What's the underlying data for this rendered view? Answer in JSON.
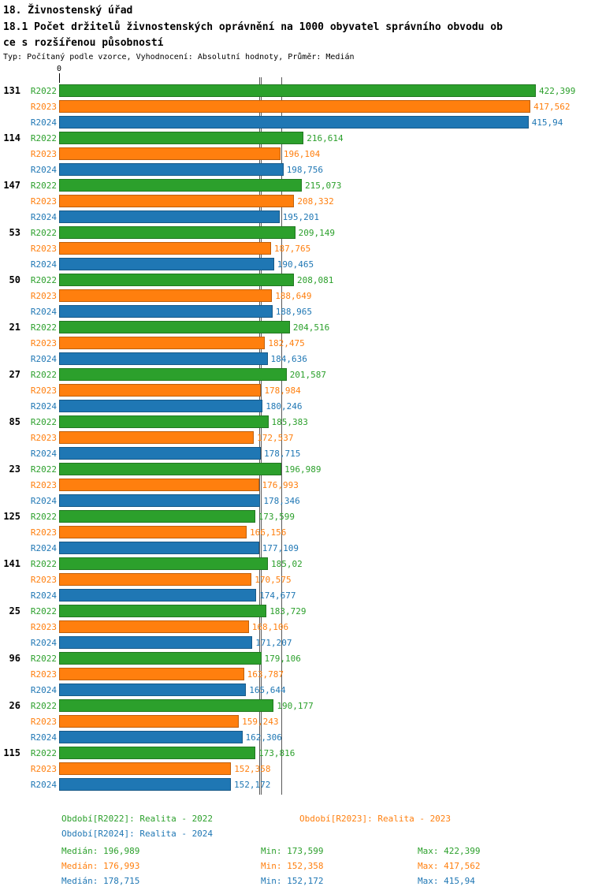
{
  "header": {
    "title": "18. Živnostenský úřad",
    "subtitle_line1": "18.1 Počet držitelů živnostenských oprávnění na 1000 obyvatel správního obvodu ob",
    "subtitle_line2": "ce s rozšířenou působností",
    "type_line": "Typ: Počítaný podle vzorce, Vyhodnocení: Absolutní hodnoty, Průměr: Medián"
  },
  "colors": {
    "series": [
      "#2ca02c",
      "#ff7f0e",
      "#1f77b4"
    ]
  },
  "axis": {
    "zero_label": "0"
  },
  "chart_data": {
    "type": "bar",
    "orientation": "horizontal",
    "title": "18.1 Počet držitelů živnostenských oprávnění na 1000 obyvatel správního obvodu obce s rozšířenou působností",
    "series_names": [
      "R2022",
      "R2023",
      "R2024"
    ],
    "x_scale_max": 422.399,
    "xlim": [
      0,
      422.399
    ],
    "median_values": [
      196.989,
      176.993,
      178.715
    ],
    "groups": [
      {
        "label": "131",
        "values": [
          422.399,
          417.562,
          415.94
        ],
        "value_labels": [
          "422,399",
          "417,562",
          "415,94"
        ]
      },
      {
        "label": "114",
        "values": [
          216.614,
          196.104,
          198.756
        ],
        "value_labels": [
          "216,614",
          "196,104",
          "198,756"
        ]
      },
      {
        "label": "147",
        "values": [
          215.073,
          208.332,
          195.201
        ],
        "value_labels": [
          "215,073",
          "208,332",
          "195,201"
        ]
      },
      {
        "label": "53",
        "values": [
          209.149,
          187.765,
          190.465
        ],
        "value_labels": [
          "209,149",
          "187,765",
          "190,465"
        ]
      },
      {
        "label": "50",
        "values": [
          208.081,
          188.649,
          188.965
        ],
        "value_labels": [
          "208,081",
          "188,649",
          "188,965"
        ]
      },
      {
        "label": "21",
        "values": [
          204.516,
          182.475,
          184.636
        ],
        "value_labels": [
          "204,516",
          "182,475",
          "184,636"
        ]
      },
      {
        "label": "27",
        "values": [
          201.587,
          178.984,
          180.246
        ],
        "value_labels": [
          "201,587",
          "178,984",
          "180,246"
        ]
      },
      {
        "label": "85",
        "values": [
          185.383,
          172.537,
          178.715
        ],
        "value_labels": [
          "185,383",
          "172,537",
          "178,715"
        ]
      },
      {
        "label": "23",
        "values": [
          196.989,
          176.993,
          178.346
        ],
        "value_labels": [
          "196,989",
          "176,993",
          "178,346"
        ]
      },
      {
        "label": "125",
        "values": [
          173.599,
          166.156,
          177.109
        ],
        "value_labels": [
          "173,599",
          "166,156",
          "177,109"
        ]
      },
      {
        "label": "141",
        "values": [
          185.02,
          170.575,
          174.677
        ],
        "value_labels": [
          "185,02",
          "170,575",
          "174,677"
        ]
      },
      {
        "label": "25",
        "values": [
          183.729,
          168.106,
          171.207
        ],
        "value_labels": [
          "183,729",
          "168,106",
          "171,207"
        ]
      },
      {
        "label": "96",
        "values": [
          179.106,
          163.787,
          165.644
        ],
        "value_labels": [
          "179,106",
          "163,787",
          "165,644"
        ]
      },
      {
        "label": "26",
        "values": [
          190.177,
          159.243,
          162.306
        ],
        "value_labels": [
          "190,177",
          "159,243",
          "162,306"
        ]
      },
      {
        "label": "115",
        "values": [
          173.816,
          152.358,
          152.172
        ],
        "value_labels": [
          "173,816",
          "152,358",
          "152,172"
        ]
      }
    ]
  },
  "legend": {
    "items": [
      {
        "label": "Období[R2022]: Realita - 2022"
      },
      {
        "label": "Období[R2023]: Realita - 2023"
      },
      {
        "label": "Období[R2024]: Realita - 2024"
      }
    ],
    "stats": [
      {
        "median": "Medián: 196,989",
        "min": "Min: 173,599",
        "max": "Max: 422,399"
      },
      {
        "median": "Medián: 176,993",
        "min": "Min: 152,358",
        "max": "Max: 417,562"
      },
      {
        "median": "Medián: 178,715",
        "min": "Min: 152,172",
        "max": "Max: 415,94"
      }
    ]
  }
}
